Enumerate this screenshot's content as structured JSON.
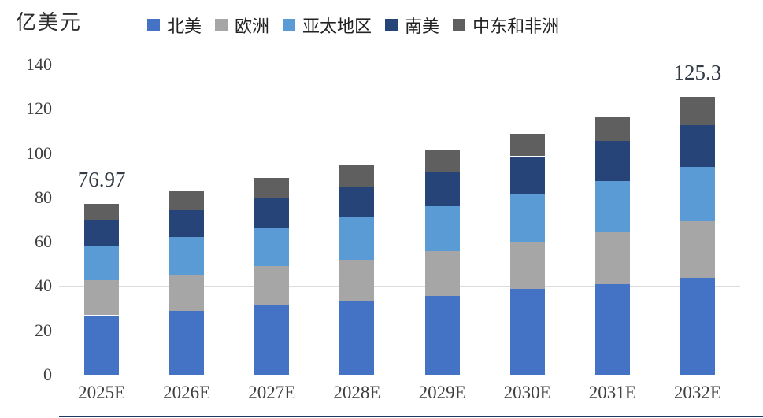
{
  "title": "亿美元",
  "legend": [
    {
      "key": "north-america",
      "label": "北美",
      "color": "#4472C4"
    },
    {
      "key": "europe",
      "label": "欧洲",
      "color": "#A6A6A6"
    },
    {
      "key": "asia-pacific",
      "label": "亚太地区",
      "color": "#5B9BD5"
    },
    {
      "key": "south-america",
      "label": "南美",
      "color": "#264478"
    },
    {
      "key": "middle-east-africa",
      "label": "中东和非洲",
      "color": "#5F5F5F"
    }
  ],
  "chart_data": {
    "type": "bar",
    "stacked": true,
    "title": "亿美元",
    "xlabel": "",
    "ylabel": "亿美元",
    "ylim": [
      0,
      140
    ],
    "yticks": [
      0,
      20,
      40,
      60,
      80,
      100,
      120,
      140
    ],
    "grid": true,
    "legend_position": "top",
    "categories": [
      "2025E",
      "2026E",
      "2027E",
      "2028E",
      "2029E",
      "2030E",
      "2031E",
      "2032E"
    ],
    "series": [
      {
        "name": "北美",
        "key": "north-america",
        "color": "#4472C4",
        "values": [
          26.8,
          28.8,
          31.4,
          33.1,
          35.5,
          38.6,
          40.9,
          43.6
        ]
      },
      {
        "name": "欧洲",
        "key": "europe",
        "color": "#A6A6A6",
        "values": [
          15.9,
          16.3,
          17.5,
          18.8,
          20.2,
          21.0,
          23.4,
          25.7
        ]
      },
      {
        "name": "亚太地区",
        "key": "asia-pacific",
        "color": "#5B9BD5",
        "values": [
          15.3,
          17.1,
          17.2,
          19.2,
          20.2,
          21.9,
          23.1,
          24.4
        ]
      },
      {
        "name": "南美",
        "key": "south-america",
        "color": "#264478",
        "values": [
          11.9,
          12.2,
          13.6,
          13.8,
          15.6,
          17.1,
          18.1,
          19.1
        ]
      },
      {
        "name": "中东和非洲",
        "key": "middle-east-africa",
        "color": "#5F5F5F",
        "values": [
          7.07,
          8.3,
          9.1,
          9.9,
          10.1,
          10.1,
          11.1,
          12.5
        ]
      }
    ],
    "annotations": [
      {
        "category": "2025E",
        "text": "76.97"
      },
      {
        "category": "2032E",
        "text": "125.3"
      }
    ]
  },
  "colors": {
    "grid": "#DCDCDC",
    "axis_text": "#3F3F3F",
    "annotation_text": "#343B46",
    "bottom_rule": "#1F3864",
    "background": "#FFFFFF"
  }
}
